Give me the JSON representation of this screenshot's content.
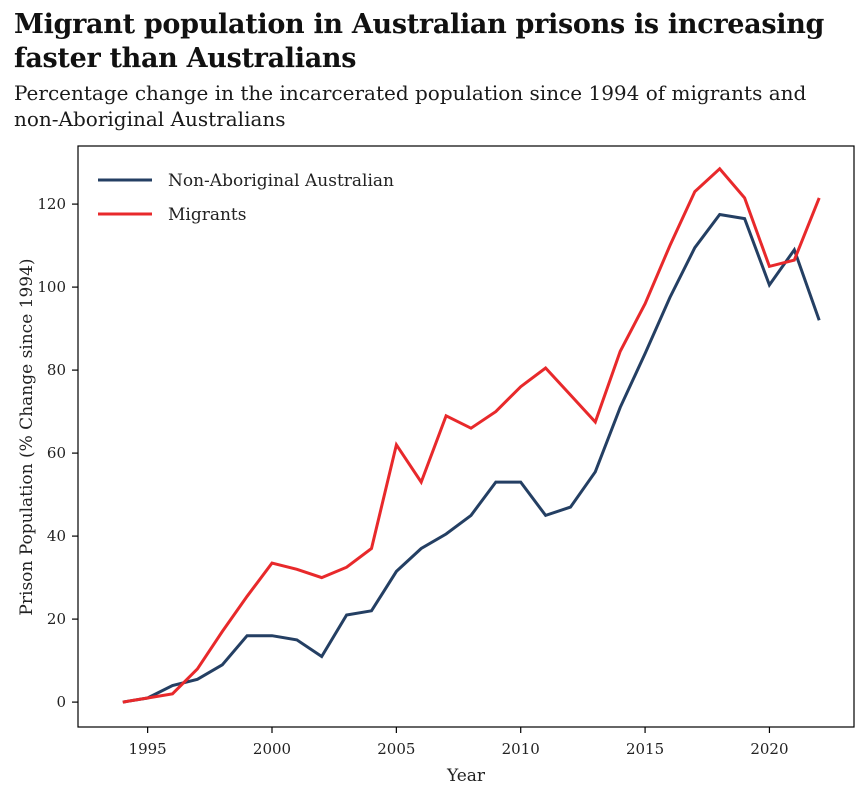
{
  "header": {
    "title": "Migrant population in Australian prisons is increasing faster than Australians",
    "subtitle": "Percentage change in the incarcerated population since 1994 of migrants and non-Aboriginal Australians"
  },
  "chart_data": {
    "type": "line",
    "xlabel": "Year",
    "ylabel": "Prison Population (% Change since 1994)",
    "xlim": [
      1992.2,
      2023.4
    ],
    "ylim": [
      -6,
      134
    ],
    "x_ticks": [
      1995,
      2000,
      2005,
      2010,
      2015,
      2020
    ],
    "y_ticks": [
      0,
      20,
      40,
      60,
      80,
      100,
      120
    ],
    "grid": false,
    "legend_position": "top-left",
    "x": [
      1994,
      1995,
      1996,
      1997,
      1998,
      1999,
      2000,
      2001,
      2002,
      2003,
      2004,
      2005,
      2006,
      2007,
      2008,
      2009,
      2010,
      2011,
      2012,
      2013,
      2014,
      2015,
      2016,
      2017,
      2018,
      2019,
      2020,
      2021,
      2022
    ],
    "series": [
      {
        "name": "Non-Aboriginal Australian",
        "color": "#243f63",
        "values": [
          0,
          1,
          4,
          5.5,
          9,
          16,
          16,
          15,
          11,
          21,
          22,
          31.5,
          37,
          40.5,
          45,
          53,
          53,
          45,
          47,
          55.5,
          71,
          84,
          97.5,
          109.5,
          117.5,
          116.5,
          100.5,
          109,
          92
        ]
      },
      {
        "name": "Migrants",
        "color": "#e8292b",
        "values": [
          0,
          1,
          2,
          8,
          17,
          25.5,
          33.5,
          32,
          30,
          32.5,
          37,
          62,
          53,
          69,
          66,
          70,
          76,
          80.5,
          74,
          67.5,
          84.5,
          96,
          110,
          123,
          128.5,
          121.5,
          105,
          106.5,
          121.5
        ]
      }
    ]
  }
}
